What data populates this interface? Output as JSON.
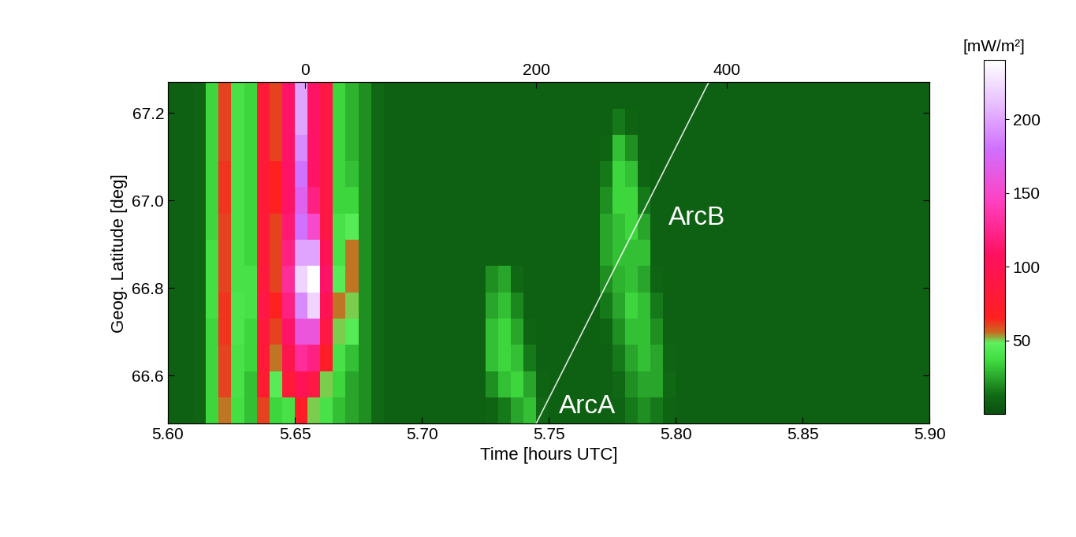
{
  "chart_data": {
    "type": "heatmap",
    "xlabel": "Time [hours UTC]",
    "ylabel": "Geog. Latitude [deg]",
    "xlim": [
      5.6,
      5.9
    ],
    "ylim": [
      66.49,
      67.27
    ],
    "xticks": [
      {
        "value": 5.6,
        "label": "5.60"
      },
      {
        "value": 5.65,
        "label": "5.65"
      },
      {
        "value": 5.7,
        "label": "5.70"
      },
      {
        "value": 5.75,
        "label": "5.75"
      },
      {
        "value": 5.8,
        "label": "5.80"
      },
      {
        "value": 5.85,
        "label": "5.85"
      },
      {
        "value": 5.9,
        "label": "5.90"
      }
    ],
    "x2ticks": [
      {
        "value": 5.654,
        "label": "0"
      },
      {
        "value": 5.745,
        "label": "200"
      },
      {
        "value": 5.82,
        "label": "400"
      }
    ],
    "yticks": [
      66.6,
      66.8,
      67.0,
      67.2
    ],
    "colorbar_label": "[mW/m²]",
    "clim": [
      0,
      240
    ],
    "cticks": [
      50,
      100,
      150,
      200
    ],
    "x_edges": [
      5.6,
      5.605,
      5.61,
      5.615,
      5.62,
      5.625,
      5.63,
      5.635,
      5.64,
      5.645,
      5.65,
      5.655,
      5.66,
      5.665,
      5.67,
      5.675,
      5.68,
      5.685,
      5.69,
      5.695,
      5.7,
      5.705,
      5.71,
      5.715,
      5.72,
      5.725,
      5.73,
      5.735,
      5.74,
      5.745,
      5.75,
      5.755,
      5.76,
      5.765,
      5.77,
      5.775,
      5.78,
      5.785,
      5.79,
      5.795,
      5.8,
      5.805,
      5.81,
      5.815,
      5.82,
      5.825,
      5.83,
      5.835,
      5.84,
      5.845,
      5.85,
      5.855,
      5.86,
      5.865,
      5.87,
      5.875,
      5.88,
      5.885,
      5.89,
      5.895,
      5.9
    ],
    "y_edges": [
      66.49,
      66.55,
      66.61,
      66.67,
      66.73,
      66.79,
      66.85,
      66.91,
      66.97,
      67.03,
      67.09,
      67.15,
      67.21,
      67.27
    ],
    "values_by_time": [
      [
        8,
        8,
        8,
        8,
        8,
        8,
        8,
        8,
        8,
        8,
        8,
        8,
        8
      ],
      [
        8,
        8,
        8,
        8,
        8,
        8,
        8,
        8,
        8,
        8,
        8,
        8,
        8
      ],
      [
        10,
        10,
        10,
        10,
        10,
        10,
        10,
        10,
        10,
        10,
        10,
        10,
        10
      ],
      [
        35,
        35,
        35,
        35,
        38,
        38,
        38,
        35,
        35,
        35,
        35,
        35,
        35
      ],
      [
        55,
        60,
        60,
        62,
        62,
        60,
        60,
        60,
        62,
        62,
        60,
        60,
        60
      ],
      [
        38,
        40,
        40,
        42,
        42,
        40,
        40,
        40,
        40,
        40,
        40,
        40,
        40
      ],
      [
        30,
        30,
        35,
        35,
        40,
        40,
        35,
        35,
        35,
        35,
        35,
        35,
        35
      ],
      [
        60,
        75,
        80,
        85,
        90,
        85,
        80,
        80,
        80,
        80,
        80,
        80,
        80
      ],
      [
        35,
        45,
        55,
        60,
        65,
        60,
        60,
        60,
        65,
        65,
        60,
        60,
        60
      ],
      [
        40,
        80,
        95,
        110,
        120,
        130,
        120,
        115,
        110,
        110,
        110,
        110,
        110
      ],
      [
        70,
        100,
        130,
        160,
        190,
        220,
        200,
        180,
        170,
        180,
        190,
        200,
        200
      ],
      [
        50,
        90,
        120,
        160,
        220,
        240,
        200,
        150,
        120,
        110,
        110,
        110,
        110
      ],
      [
        40,
        50,
        70,
        90,
        100,
        110,
        100,
        90,
        90,
        90,
        90,
        90,
        90
      ],
      [
        30,
        35,
        40,
        50,
        55,
        45,
        40,
        40,
        35,
        35,
        35,
        35,
        35
      ],
      [
        25,
        25,
        30,
        45,
        50,
        55,
        55,
        45,
        35,
        30,
        28,
        28,
        28
      ],
      [
        20,
        20,
        20,
        20,
        20,
        20,
        20,
        20,
        20,
        20,
        20,
        20,
        20
      ],
      [
        12,
        12,
        12,
        12,
        12,
        12,
        12,
        12,
        12,
        12,
        12,
        12,
        12
      ],
      [
        8,
        8,
        8,
        8,
        8,
        8,
        8,
        8,
        8,
        8,
        8,
        8,
        8
      ],
      [
        8,
        8,
        8,
        8,
        8,
        8,
        8,
        8,
        8,
        8,
        8,
        8,
        8
      ],
      [
        8,
        8,
        8,
        8,
        8,
        8,
        8,
        8,
        8,
        8,
        8,
        8,
        8
      ],
      [
        8,
        8,
        8,
        8,
        8,
        8,
        8,
        8,
        8,
        8,
        8,
        8,
        8
      ],
      [
        8,
        8,
        8,
        8,
        8,
        8,
        8,
        8,
        8,
        8,
        8,
        8,
        8
      ],
      [
        8,
        8,
        8,
        8,
        8,
        8,
        8,
        8,
        8,
        8,
        8,
        8,
        8
      ],
      [
        8,
        8,
        8,
        8,
        8,
        8,
        8,
        8,
        8,
        8,
        8,
        8,
        8
      ],
      [
        8,
        8,
        8,
        8,
        8,
        8,
        8,
        8,
        8,
        8,
        8,
        8,
        8
      ],
      [
        10,
        20,
        30,
        30,
        25,
        20,
        8,
        8,
        8,
        8,
        8,
        8,
        8
      ],
      [
        15,
        30,
        35,
        35,
        30,
        25,
        8,
        8,
        8,
        8,
        8,
        8,
        8
      ],
      [
        25,
        35,
        30,
        25,
        18,
        12,
        8,
        8,
        8,
        8,
        8,
        8,
        8
      ],
      [
        30,
        25,
        15,
        10,
        8,
        8,
        8,
        8,
        8,
        8,
        8,
        8,
        8
      ],
      [
        12,
        10,
        8,
        8,
        8,
        8,
        8,
        8,
        8,
        8,
        8,
        8,
        8
      ],
      [
        8,
        8,
        8,
        8,
        8,
        8,
        8,
        8,
        8,
        8,
        8,
        8,
        8
      ],
      [
        8,
        8,
        8,
        8,
        8,
        8,
        8,
        8,
        8,
        8,
        8,
        8,
        8
      ],
      [
        8,
        8,
        8,
        8,
        8,
        8,
        8,
        8,
        8,
        8,
        8,
        8,
        8
      ],
      [
        8,
        8,
        8,
        8,
        8,
        8,
        8,
        8,
        8,
        8,
        8,
        8,
        8
      ],
      [
        8,
        8,
        8,
        10,
        15,
        20,
        25,
        25,
        20,
        15,
        10,
        8,
        8
      ],
      [
        10,
        12,
        15,
        20,
        25,
        28,
        30,
        30,
        35,
        35,
        30,
        15,
        8
      ],
      [
        15,
        20,
        25,
        30,
        35,
        30,
        30,
        35,
        35,
        30,
        20,
        10,
        8
      ],
      [
        20,
        25,
        30,
        30,
        30,
        25,
        30,
        25,
        15,
        10,
        8,
        8,
        8
      ],
      [
        15,
        25,
        25,
        20,
        15,
        10,
        8,
        8,
        8,
        8,
        8,
        8,
        8
      ],
      [
        10,
        12,
        10,
        8,
        8,
        8,
        8,
        8,
        8,
        8,
        8,
        8,
        8
      ],
      [
        8,
        8,
        8,
        8,
        8,
        8,
        8,
        8,
        8,
        8,
        8,
        8,
        8
      ],
      [
        8,
        8,
        8,
        8,
        8,
        8,
        8,
        8,
        8,
        8,
        8,
        8,
        8
      ],
      [
        8,
        8,
        8,
        8,
        8,
        8,
        8,
        8,
        8,
        8,
        8,
        8,
        8
      ],
      [
        8,
        8,
        8,
        8,
        8,
        8,
        8,
        8,
        8,
        8,
        8,
        8,
        8
      ],
      [
        8,
        8,
        8,
        8,
        8,
        8,
        8,
        8,
        8,
        8,
        8,
        8,
        8
      ],
      [
        8,
        8,
        8,
        8,
        8,
        8,
        8,
        8,
        8,
        8,
        8,
        8,
        8
      ],
      [
        8,
        8,
        8,
        8,
        8,
        8,
        8,
        8,
        8,
        8,
        8,
        8,
        8
      ],
      [
        8,
        8,
        8,
        8,
        8,
        8,
        8,
        8,
        8,
        8,
        8,
        8,
        8
      ],
      [
        8,
        8,
        8,
        8,
        8,
        8,
        8,
        8,
        8,
        8,
        8,
        8,
        8
      ],
      [
        8,
        8,
        8,
        8,
        8,
        8,
        8,
        8,
        8,
        8,
        8,
        8,
        8
      ],
      [
        8,
        8,
        8,
        8,
        8,
        8,
        8,
        8,
        8,
        8,
        8,
        8,
        8
      ],
      [
        8,
        8,
        8,
        8,
        8,
        8,
        8,
        8,
        8,
        8,
        8,
        8,
        8
      ],
      [
        8,
        8,
        8,
        8,
        8,
        8,
        8,
        8,
        8,
        8,
        8,
        8,
        8
      ],
      [
        8,
        8,
        8,
        8,
        8,
        8,
        8,
        8,
        8,
        8,
        8,
        8,
        8
      ],
      [
        8,
        8,
        8,
        8,
        8,
        8,
        8,
        8,
        8,
        8,
        8,
        8,
        8
      ],
      [
        8,
        8,
        8,
        8,
        8,
        8,
        8,
        8,
        8,
        8,
        8,
        8,
        8
      ],
      [
        8,
        8,
        8,
        8,
        8,
        8,
        8,
        8,
        8,
        8,
        8,
        8,
        8
      ],
      [
        8,
        8,
        8,
        8,
        8,
        8,
        8,
        8,
        8,
        8,
        8,
        8,
        8
      ],
      [
        8,
        8,
        8,
        8,
        8,
        8,
        8,
        8,
        8,
        8,
        8,
        8,
        8
      ],
      [
        8,
        8,
        8,
        8,
        8,
        8,
        8,
        8,
        8,
        8,
        8,
        8,
        8
      ]
    ],
    "track": {
      "x": [
        5.745,
        5.813
      ],
      "y": [
        66.49,
        67.27
      ]
    },
    "annotations": [
      {
        "text": "ArcA",
        "x": 5.754,
        "y": 66.53
      },
      {
        "text": "ArcB",
        "x": 5.797,
        "y": 66.96
      }
    ]
  }
}
